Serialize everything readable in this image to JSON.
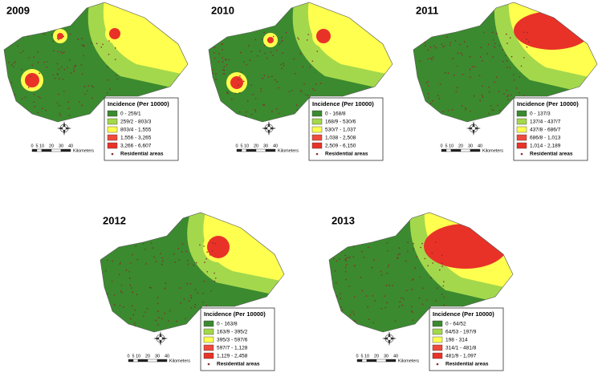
{
  "maps": [
    {
      "year": "2009",
      "legend_title": "Incidence (Per 10000)",
      "classes": [
        "0 - 259/1",
        "259/2 - 803/3",
        "803/4 - 1,555",
        "1,556 - 3,265",
        "3,266 - 6,607"
      ],
      "residential_label": "Residential areas"
    },
    {
      "year": "2010",
      "legend_title": "Incidence (Per 10000)",
      "classes": [
        "0 - 168/8",
        "168/9 - 530/6",
        "530/7 - 1,037",
        "1,038 - 2,508",
        "2,509 - 6,150"
      ],
      "residential_label": "Residential areas"
    },
    {
      "year": "2011",
      "legend_title": "Incidence (Per 10000)",
      "classes": [
        "0 - 137/3",
        "137/4 - 437/7",
        "437/8 - 686/7",
        "686/8 - 1,013",
        "1,014 - 2,189"
      ],
      "residential_label": "Residential areas"
    },
    {
      "year": "2012",
      "legend_title": "Incidence (Per 10000)",
      "classes": [
        "0 - 163/8",
        "163/9 - 395/2",
        "395/3 - 597/6",
        "597/7 - 1,128",
        "1,129 - 2,458"
      ],
      "residential_label": "Residential areas"
    },
    {
      "year": "2013",
      "legend_title": "Incidence (Per 10000)",
      "classes": [
        "0 - 64/52",
        "64/53 - 197/9",
        "198 - 314",
        "314/1 - 481/8",
        "481/9 - 1,097"
      ],
      "residential_label": "Residential areas"
    }
  ],
  "class_colors": [
    "#3b8a2f",
    "#a4d84c",
    "#ffff50",
    "#f04a3c",
    "#e83228"
  ],
  "scale": {
    "ticks": [
      "0",
      "5",
      "10",
      "20",
      "30",
      "40"
    ],
    "unit": "Kilometers"
  }
}
